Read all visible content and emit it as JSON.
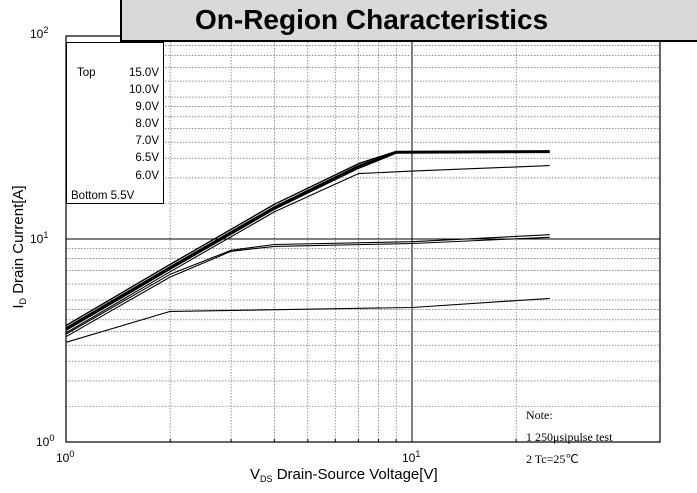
{
  "chart_data": {
    "type": "line",
    "title": "On-Region Characteristics",
    "xlabel": {
      "sym": "V",
      "sub": "DS",
      "text": " Drain-Source Voltage[V]"
    },
    "ylabel": {
      "sym": "I",
      "sub": "D",
      "text": " Drain Current[A]"
    },
    "xscale": "log",
    "yscale": "log",
    "xlim": [
      1,
      25
    ],
    "ylim": [
      1,
      100
    ],
    "grid": true,
    "x_ticks": [
      {
        "base": "10",
        "exp": "0"
      },
      {
        "base": "10",
        "exp": "1"
      }
    ],
    "y_ticks": [
      {
        "base": "10",
        "exp": "0"
      },
      {
        "base": "10",
        "exp": "1"
      },
      {
        "base": "10",
        "exp": "2"
      }
    ],
    "legend": {
      "placement": "top-left",
      "top_label": "Top",
      "bottom_label": "Bottom",
      "entries": [
        "15.0V",
        "10.0V",
        "9.0V",
        "8.0V",
        "7.0V",
        "6.5V",
        "6.0V",
        "5.5V"
      ]
    },
    "note": [
      "Note:",
      "1 250μsipulse test",
      "2 Tc=25℃"
    ],
    "series": [
      {
        "name": "15.0V",
        "points": [
          [
            1,
            3.75
          ],
          [
            2,
            7.5
          ],
          [
            4,
            14.8
          ],
          [
            7,
            23.5
          ],
          [
            9,
            27
          ],
          [
            25,
            27.2
          ]
        ]
      },
      {
        "name": "10.0V",
        "points": [
          [
            1,
            3.65
          ],
          [
            2,
            7.3
          ],
          [
            4,
            14.4
          ],
          [
            7,
            23
          ],
          [
            9,
            26.8
          ],
          [
            25,
            27
          ]
        ]
      },
      {
        "name": "9.0V",
        "points": [
          [
            1,
            3.6
          ],
          [
            2,
            7.2
          ],
          [
            4,
            14.2
          ],
          [
            7,
            22.7
          ],
          [
            9,
            26.6
          ],
          [
            25,
            26.9
          ]
        ]
      },
      {
        "name": "8.0V",
        "points": [
          [
            1,
            3.55
          ],
          [
            2,
            7.1
          ],
          [
            4,
            14
          ],
          [
            7,
            22.3
          ],
          [
            9,
            26.5
          ],
          [
            25,
            26.7
          ]
        ]
      },
      {
        "name": "7.0V",
        "points": [
          [
            1,
            3.45
          ],
          [
            2,
            6.9
          ],
          [
            4,
            13.6
          ],
          [
            7,
            21
          ],
          [
            10,
            21.6
          ],
          [
            25,
            23
          ]
        ]
      },
      {
        "name": "6.5V",
        "points": [
          [
            1,
            3.4
          ],
          [
            2,
            6.7
          ],
          [
            3,
            8.8
          ],
          [
            4,
            9.4
          ],
          [
            10,
            9.7
          ],
          [
            25,
            10.5
          ]
        ]
      },
      {
        "name": "6.0V",
        "points": [
          [
            1,
            3.3
          ],
          [
            2,
            6.5
          ],
          [
            3,
            8.7
          ],
          [
            4,
            9.2
          ],
          [
            10,
            9.5
          ],
          [
            25,
            10.2
          ]
        ]
      },
      {
        "name": "5.5V",
        "points": [
          [
            1,
            3.1
          ],
          [
            2,
            4.4
          ],
          [
            10,
            4.6
          ],
          [
            25,
            5.1
          ]
        ]
      }
    ]
  }
}
